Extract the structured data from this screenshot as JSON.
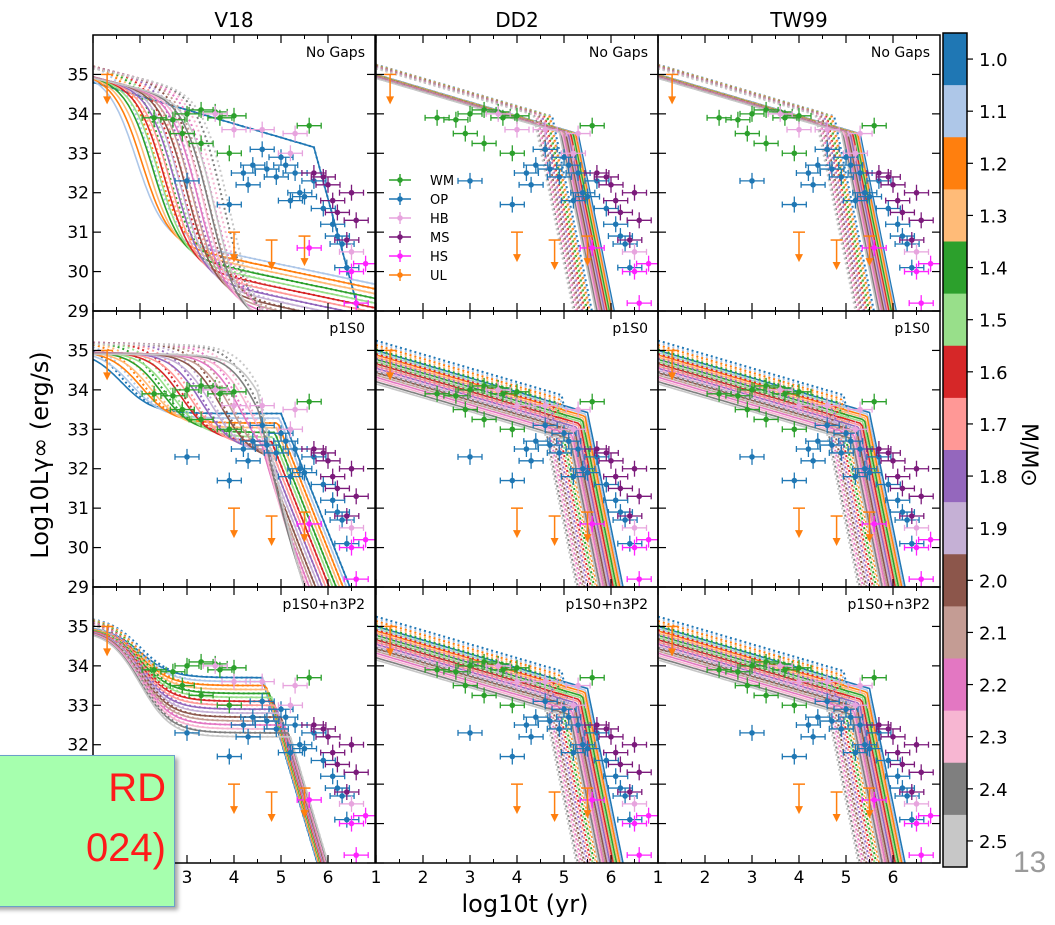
{
  "chart_data": {
    "type": "line",
    "grid": false,
    "column_titles": [
      "V18",
      "DD2",
      "TW99"
    ],
    "row_labels": [
      "No Gaps",
      "p1S0",
      "p1S0+n3P2"
    ],
    "xlabel": "log10t (yr)",
    "ylabel": "Log10Lγ∞ (erg/s)",
    "xlim": [
      1,
      7
    ],
    "ylim": [
      29,
      36
    ],
    "x_ticks": [
      1,
      2,
      3,
      4,
      5,
      6
    ],
    "y_ticks": [
      29,
      30,
      31,
      32,
      33,
      34,
      35
    ],
    "legend": {
      "placement": "center-left of top-left panel",
      "entries": [
        {
          "label": "WM",
          "color": "#2ca02c"
        },
        {
          "label": "OP",
          "color": "#1f77b4"
        },
        {
          "label": "HB",
          "color": "#e7a4de"
        },
        {
          "label": "MS",
          "color": "#7b1a7b"
        },
        {
          "label": "HS",
          "color": "#ff22ff"
        },
        {
          "label": "UL",
          "color": "#ff7f0e"
        }
      ]
    },
    "colorbar": {
      "label": "M/M⊙",
      "masses": [
        "1.0",
        "1.1",
        "1.2",
        "1.3",
        "1.4",
        "1.5",
        "1.6",
        "1.7",
        "1.8",
        "1.9",
        "2.0",
        "2.1",
        "2.2",
        "2.3",
        "2.4",
        "2.5"
      ],
      "colors": [
        "#1f77b4",
        "#aec7e8",
        "#ff7f0e",
        "#ffbb78",
        "#2ca02c",
        "#98df8a",
        "#d62728",
        "#ff9896",
        "#9467bd",
        "#c5b0d5",
        "#8c564b",
        "#c49c94",
        "#e377c2",
        "#f7b6d2",
        "#7f7f7f",
        "#c7c7c7"
      ]
    },
    "observations": {
      "WM": [
        [
          2.3,
          33.9
        ],
        [
          2.7,
          33.85
        ],
        [
          3.0,
          34.0
        ],
        [
          3.3,
          34.1
        ],
        [
          3.6,
          34.05
        ],
        [
          3.7,
          33.9
        ],
        [
          4.0,
          33.95
        ],
        [
          2.9,
          33.5
        ],
        [
          3.3,
          33.25
        ],
        [
          3.9,
          33.0
        ],
        [
          5.6,
          33.7
        ]
      ],
      "OP": [
        [
          3.0,
          32.3
        ],
        [
          3.9,
          31.7
        ],
        [
          4.2,
          32.5
        ],
        [
          4.4,
          32.7
        ],
        [
          4.7,
          32.6
        ],
        [
          4.9,
          32.4
        ],
        [
          5.0,
          32.9
        ],
        [
          5.1,
          32.7
        ],
        [
          5.3,
          32.5
        ],
        [
          5.4,
          32.0
        ],
        [
          5.5,
          31.9
        ],
        [
          5.7,
          32.3
        ],
        [
          5.9,
          31.6
        ],
        [
          6.1,
          31.2
        ],
        [
          6.2,
          30.9
        ],
        [
          6.3,
          30.7
        ],
        [
          6.4,
          30.1
        ],
        [
          4.6,
          33.1
        ],
        [
          4.3,
          32.2
        ],
        [
          5.2,
          31.8
        ]
      ],
      "HB": [
        [
          3.6,
          34.0
        ],
        [
          4.0,
          33.6
        ],
        [
          4.6,
          33.6
        ],
        [
          5.3,
          33.5
        ],
        [
          5.2,
          33.0
        ],
        [
          6.5,
          30.5
        ]
      ],
      "MS": [
        [
          5.7,
          32.5
        ],
        [
          5.9,
          32.4
        ],
        [
          6.0,
          32.2
        ],
        [
          6.1,
          31.8
        ],
        [
          6.2,
          31.5
        ],
        [
          6.5,
          32.0
        ],
        [
          6.6,
          31.3
        ],
        [
          6.4,
          30.8
        ]
      ],
      "HS": [
        [
          5.6,
          30.6
        ],
        [
          6.5,
          30.0
        ],
        [
          6.8,
          30.2
        ],
        [
          6.6,
          29.2
        ]
      ],
      "UL": [
        [
          1.3,
          35.0
        ],
        [
          4.0,
          31.0
        ],
        [
          4.8,
          30.8
        ],
        [
          5.5,
          30.9
        ]
      ]
    }
  },
  "note": {
    "line1": "RD",
    "line2": "024)"
  },
  "slide_number": "13"
}
